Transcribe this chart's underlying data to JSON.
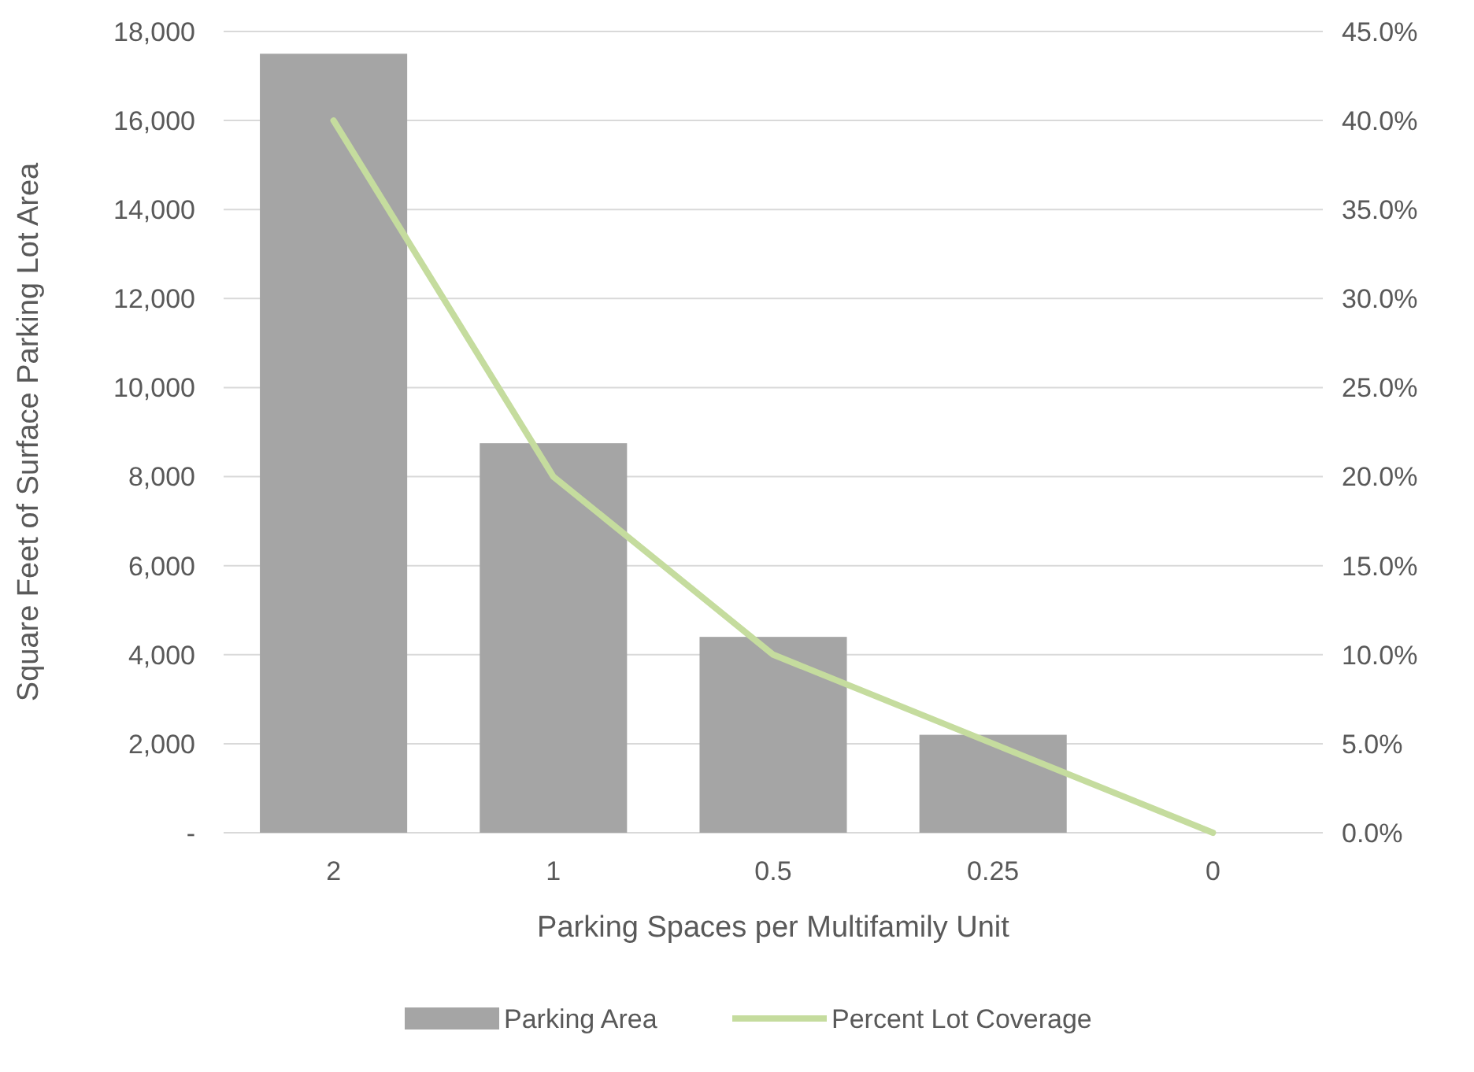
{
  "chart_data": {
    "type": "bar",
    "xlabel": "Parking Spaces per Multifamily Unit",
    "ylabel": "Square Feet of Surface Parking  Lot Area",
    "categories": [
      "2",
      "1",
      "0.5",
      "0.25",
      "0"
    ],
    "series": [
      {
        "name": "Parking Area",
        "color": "#a5a5a5",
        "values": [
          17500,
          8750,
          4400,
          2200,
          0
        ]
      },
      {
        "name": "Percent Lot Coverage",
        "type": "line",
        "axis": "y2",
        "color": "#c5dc9e",
        "values": [
          40,
          20,
          10,
          5,
          0
        ]
      }
    ],
    "ylim": [
      0,
      18000
    ],
    "yticks": [
      {
        "value": 0,
        "label": "-"
      },
      {
        "value": 2000,
        "label": "2,000"
      },
      {
        "value": 4000,
        "label": "4,000"
      },
      {
        "value": 6000,
        "label": "6,000"
      },
      {
        "value": 8000,
        "label": "8,000"
      },
      {
        "value": 10000,
        "label": "10,000"
      },
      {
        "value": 12000,
        "label": "12,000"
      },
      {
        "value": 14000,
        "label": "14,000"
      },
      {
        "value": 16000,
        "label": "16,000"
      },
      {
        "value": 18000,
        "label": "18,000"
      }
    ],
    "y2lim": [
      0,
      45
    ],
    "y2ticks": [
      {
        "value": 0,
        "label": "0.0%"
      },
      {
        "value": 5,
        "label": "5.0%"
      },
      {
        "value": 10,
        "label": "10.0%"
      },
      {
        "value": 15,
        "label": "15.0%"
      },
      {
        "value": 20,
        "label": "20.0%"
      },
      {
        "value": 25,
        "label": "25.0%"
      },
      {
        "value": 30,
        "label": "30.0%"
      },
      {
        "value": 35,
        "label": "35.0%"
      },
      {
        "value": 40,
        "label": "40.0%"
      },
      {
        "value": 45,
        "label": "45.0%"
      }
    ],
    "grid": "y",
    "legend": "bottom",
    "marker": "none",
    "line_style": "solid"
  }
}
